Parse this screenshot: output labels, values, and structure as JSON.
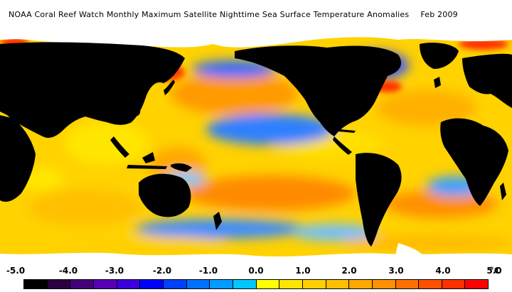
{
  "header": {
    "title": "NOAA Coral Reef Watch Monthly Maximum Satellite Nighttime Sea Surface Temperature Anomalies",
    "date": "Feb 2009"
  },
  "colorbar": {
    "ticks": [
      "-5.0",
      "-4.0",
      "-3.0",
      "-2.0",
      "-1.0",
      "0.0",
      "1.0",
      "2.0",
      "3.0",
      "4.0",
      "5.0"
    ],
    "unit": "°C",
    "colors": [
      "#000000",
      "#2a0040",
      "#45007a",
      "#5a00b4",
      "#3c00e0",
      "#0000ff",
      "#0040ff",
      "#0070ff",
      "#009cff",
      "#00c8ff",
      "#ffff00",
      "#ffe400",
      "#ffd000",
      "#ffbe00",
      "#ffa800",
      "#ff9000",
      "#ff7000",
      "#ff5000",
      "#ff3000",
      "#ff0000"
    ]
  },
  "map": {
    "land_color": "#000000",
    "ice_color": "#ffffff",
    "ocean_base_color": "#ffd200"
  }
}
